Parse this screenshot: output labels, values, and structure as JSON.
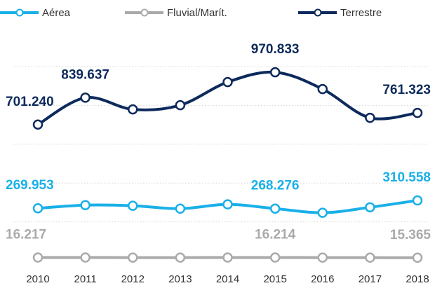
{
  "chart_data": {
    "type": "line",
    "categories": [
      "2010",
      "2011",
      "2012",
      "2013",
      "2014",
      "2015",
      "2016",
      "2017",
      "2018"
    ],
    "series": [
      {
        "name": "Aérea",
        "color": "#1ab0e8",
        "values": [
          269953,
          286000,
          283000,
          268000,
          290000,
          268276,
          247000,
          275000,
          310558
        ],
        "value_labels": [
          "269.953",
          null,
          null,
          null,
          null,
          "268.276",
          null,
          null,
          "310.558"
        ]
      },
      {
        "name": "Fluvial/Marít.",
        "color": "#aaaaaa",
        "values": [
          16217,
          16100,
          16000,
          16000,
          16100,
          16214,
          15900,
          15600,
          15365
        ],
        "value_labels": [
          "16.217",
          null,
          null,
          null,
          null,
          "16.214",
          null,
          null,
          "15.365"
        ]
      },
      {
        "name": "Terrestre",
        "color": "#0d2a5c",
        "values": [
          701240,
          839637,
          779400,
          801000,
          920000,
          970833,
          884000,
          736000,
          761323
        ],
        "value_labels": [
          "701.240",
          "839.637",
          null,
          null,
          null,
          "970.833",
          null,
          null,
          "761.323"
        ]
      }
    ],
    "ylim": [
      0,
      1000000
    ],
    "yticks": [
      200000,
      400000,
      600000,
      800000,
      1000000
    ],
    "grid": true
  }
}
